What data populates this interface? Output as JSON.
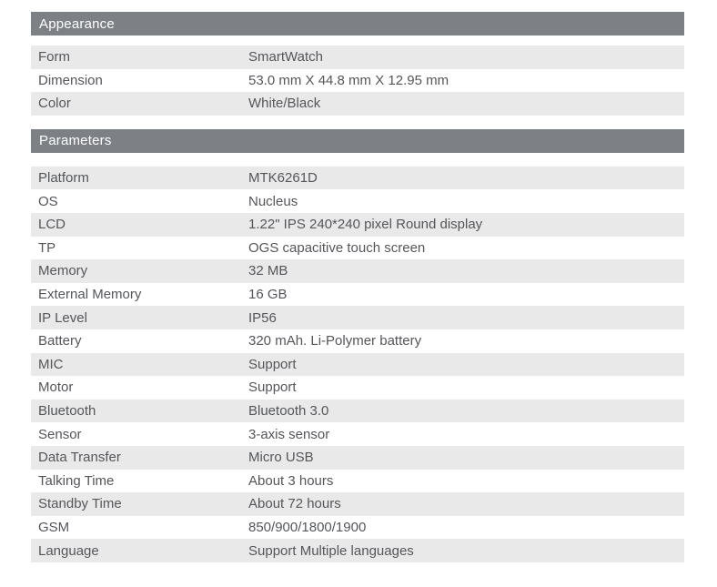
{
  "colors": {
    "page_bg": "#ffffff",
    "section_header_bg": "#7d8186",
    "section_header_text": "#ffffff",
    "row_stripe_bg": "#e9e9ea",
    "row_plain_bg": "#ffffff",
    "text": "#54565a"
  },
  "sections": [
    {
      "title": "Appearance",
      "rows": [
        {
          "label": "Form",
          "value": "SmartWatch"
        },
        {
          "label": "Dimension",
          "value": "53.0 mm X 44.8 mm X 12.95 mm"
        },
        {
          "label": "Color",
          "value": "White/Black"
        }
      ]
    },
    {
      "title": "Parameters",
      "rows": [
        {
          "label": "Platform",
          "value": "MTK6261D"
        },
        {
          "label": "OS",
          "value": "Nucleus"
        },
        {
          "label": "LCD",
          "value": "1.22\" IPS 240*240 pixel Round display"
        },
        {
          "label": "TP",
          "value": "OGS capacitive touch screen"
        },
        {
          "label": "Memory",
          "value": "32 MB"
        },
        {
          "label": "External Memory",
          "value": "16 GB"
        },
        {
          "label": "IP Level",
          "value": "IP56"
        },
        {
          "label": "Battery",
          "value": "320 mAh. Li-Polymer battery"
        },
        {
          "label": "MIC",
          "value": "Support"
        },
        {
          "label": "Motor",
          "value": "Support"
        },
        {
          "label": "Bluetooth",
          "value": "Bluetooth 3.0"
        },
        {
          "label": "Sensor",
          "value": "3-axis sensor"
        },
        {
          "label": "Data Transfer",
          "value": "Micro USB"
        },
        {
          "label": "Talking Time",
          "value": "About 3 hours"
        },
        {
          "label": "Standby Time",
          "value": "About 72 hours"
        },
        {
          "label": "GSM",
          "value": "850/900/1800/1900"
        },
        {
          "label": "Language",
          "value": "Support Multiple languages"
        }
      ]
    }
  ]
}
